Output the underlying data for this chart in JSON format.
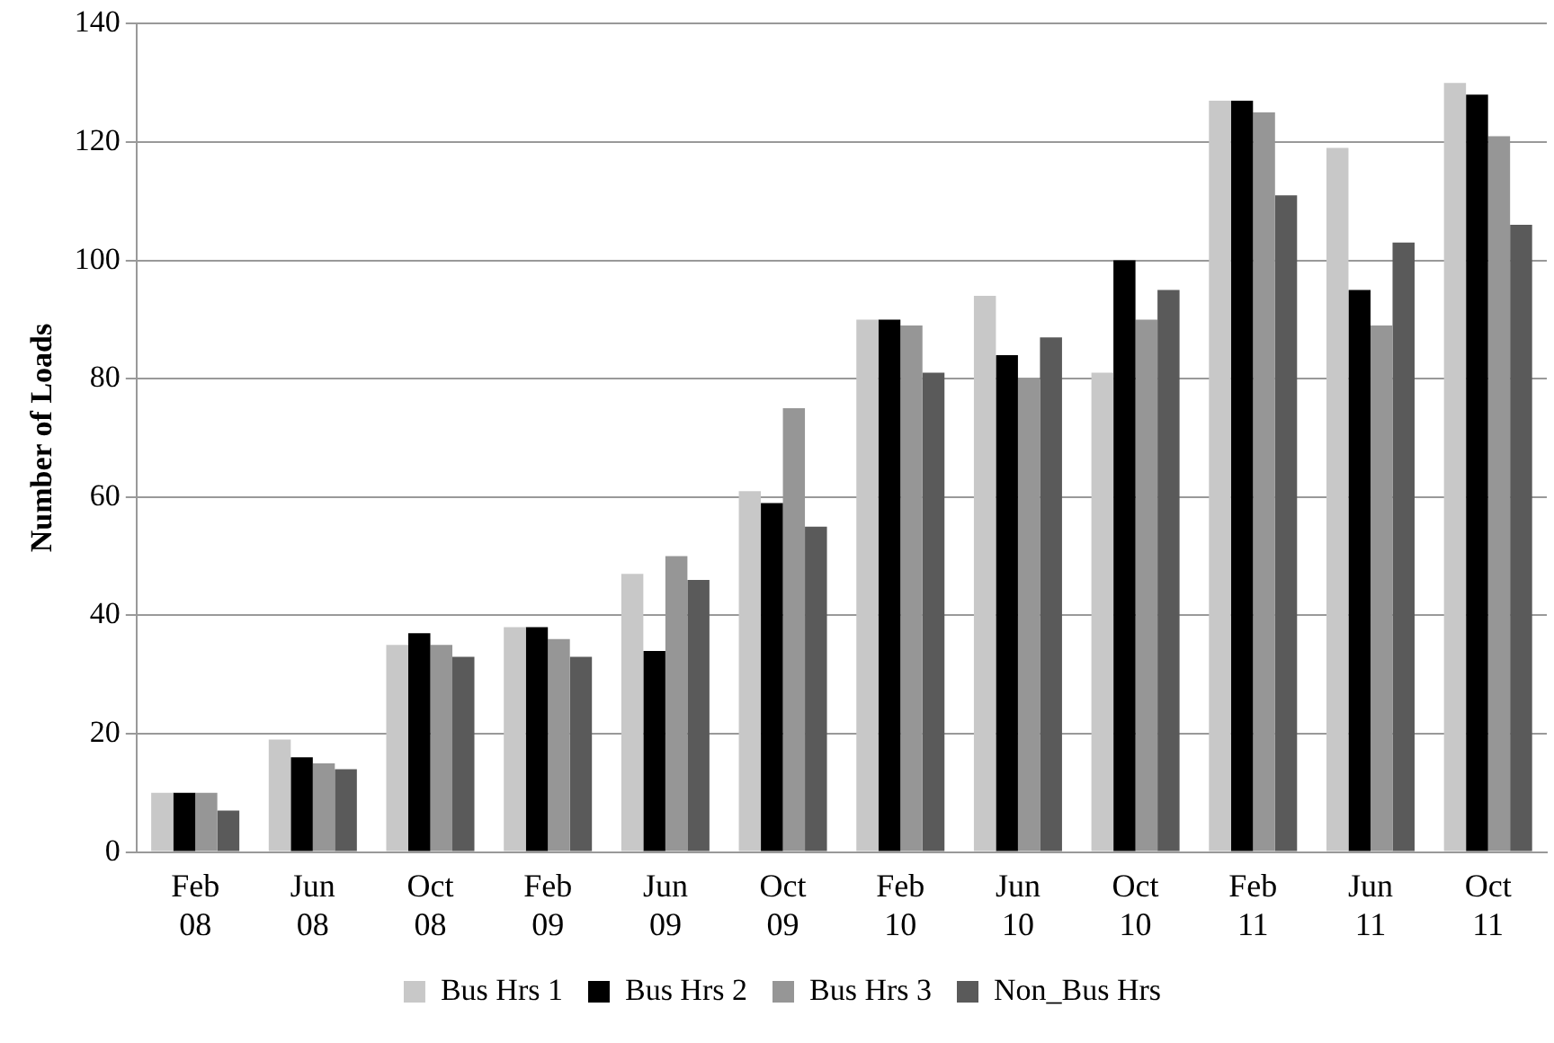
{
  "chart_data": {
    "type": "bar",
    "ylabel": "Number of Loads",
    "categories": [
      "Feb 08",
      "Jun 08",
      "Oct 08",
      "Feb 09",
      "Jun 09",
      "Oct 09",
      "Feb 10",
      "Jun 10",
      "Oct 10",
      "Feb 11",
      "Jun 11",
      "Oct 11"
    ],
    "series": [
      {
        "name": "Bus Hrs 1",
        "color": "#c8c8c8",
        "values": [
          10,
          19,
          35,
          38,
          47,
          61,
          90,
          94,
          81,
          127,
          119,
          130
        ]
      },
      {
        "name": "Bus Hrs 2",
        "color": "#000000",
        "values": [
          10,
          16,
          37,
          38,
          34,
          59,
          90,
          84,
          100,
          127,
          95,
          128
        ]
      },
      {
        "name": "Bus Hrs 3",
        "color": "#969696",
        "values": [
          10,
          15,
          35,
          36,
          50,
          75,
          89,
          80,
          90,
          125,
          89,
          121
        ]
      },
      {
        "name": "Non_Bus Hrs",
        "color": "#5a5a5a",
        "values": [
          7,
          14,
          33,
          33,
          46,
          55,
          81,
          87,
          95,
          111,
          103,
          106
        ]
      }
    ],
    "ylim": [
      0,
      140
    ],
    "yticks": [
      0,
      20,
      40,
      60,
      80,
      100,
      120,
      140
    ],
    "grid": "y",
    "legend": "bottom"
  }
}
